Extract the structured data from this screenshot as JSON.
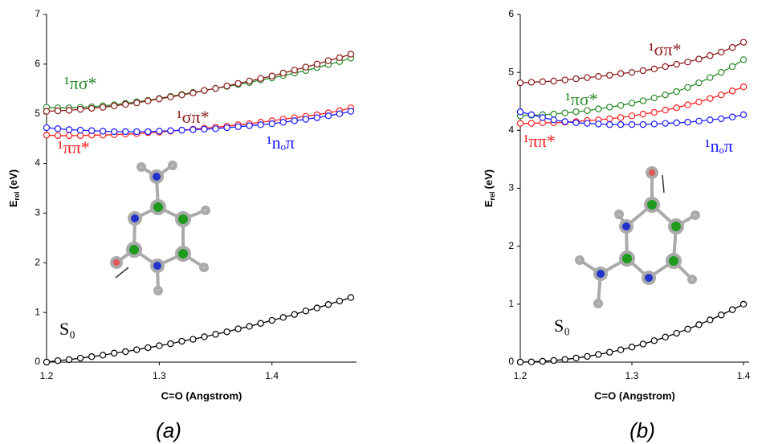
{
  "chart_data": [
    {
      "type": "line",
      "caption": "(a)",
      "x_label": "C=O (Angstrom)",
      "y_label": {
        "main": "E",
        "sub": "rel",
        "unit": "(eV)"
      },
      "xlim": [
        1.2,
        1.475
      ],
      "xticks": [
        1.2,
        1.3,
        1.4
      ],
      "ylim": [
        0,
        7
      ],
      "yticks": [
        0,
        1,
        2,
        3,
        4,
        5,
        6,
        7
      ],
      "x": [
        1.2,
        1.21,
        1.22,
        1.23,
        1.24,
        1.25,
        1.26,
        1.27,
        1.28,
        1.29,
        1.3,
        1.31,
        1.32,
        1.33,
        1.34,
        1.35,
        1.36,
        1.37,
        1.38,
        1.39,
        1.4,
        1.41,
        1.42,
        1.43,
        1.44,
        1.45,
        1.46,
        1.47
      ],
      "series": [
        {
          "name": "S₀",
          "color": "#000000",
          "values": [
            0,
            0.03,
            0.05,
            0.08,
            0.11,
            0.14,
            0.18,
            0.21,
            0.25,
            0.29,
            0.33,
            0.37,
            0.42,
            0.46,
            0.51,
            0.56,
            0.61,
            0.67,
            0.72,
            0.78,
            0.84,
            0.9,
            0.96,
            1.03,
            1.09,
            1.16,
            1.23,
            1.3
          ]
        },
        {
          "name": "¹πσ*",
          "color": "#2a8a2a",
          "values": [
            5.13,
            5.12,
            5.12,
            5.13,
            5.14,
            5.16,
            5.18,
            5.21,
            5.24,
            5.27,
            5.31,
            5.35,
            5.39,
            5.43,
            5.47,
            5.51,
            5.55,
            5.59,
            5.63,
            5.68,
            5.72,
            5.77,
            5.82,
            5.87,
            5.93,
            5.99,
            6.05,
            6.12
          ]
        },
        {
          "name": "¹σπ*",
          "color": "#8b1a1a",
          "values": [
            5.05,
            5.06,
            5.07,
            5.09,
            5.11,
            5.13,
            5.16,
            5.19,
            5.22,
            5.26,
            5.3,
            5.34,
            5.38,
            5.42,
            5.47,
            5.51,
            5.56,
            5.61,
            5.66,
            5.71,
            5.76,
            5.82,
            5.88,
            5.94,
            6.0,
            6.07,
            6.13,
            6.2
          ]
        },
        {
          "name": "¹ππ*",
          "color": "#ff2020",
          "values": [
            4.57,
            4.56,
            4.56,
            4.56,
            4.57,
            4.57,
            4.58,
            4.59,
            4.6,
            4.62,
            4.63,
            4.65,
            4.67,
            4.69,
            4.71,
            4.73,
            4.75,
            4.78,
            4.8,
            4.83,
            4.86,
            4.89,
            4.92,
            4.95,
            4.98,
            5.02,
            5.06,
            5.12
          ]
        },
        {
          "name": "¹nₒπ",
          "color": "#1a1aff",
          "values": [
            4.72,
            4.7,
            4.68,
            4.67,
            4.66,
            4.65,
            4.64,
            4.64,
            4.64,
            4.64,
            4.65,
            4.66,
            4.67,
            4.68,
            4.69,
            4.7,
            4.72,
            4.74,
            4.76,
            4.78,
            4.8,
            4.83,
            4.86,
            4.89,
            4.92,
            4.96,
            5.0,
            5.05
          ]
        }
      ]
    },
    {
      "type": "line",
      "caption": "(b)",
      "x_label": "C=O (Angstrom)",
      "y_label": {
        "main": "E",
        "sub": "rel",
        "unit": "(eV)"
      },
      "xlim": [
        1.2,
        1.405
      ],
      "xticks": [
        1.2,
        1.3,
        1.4
      ],
      "ylim": [
        0,
        6
      ],
      "yticks": [
        0,
        1,
        2,
        3,
        4,
        5,
        6
      ],
      "x": [
        1.2,
        1.21,
        1.22,
        1.23,
        1.24,
        1.25,
        1.26,
        1.27,
        1.28,
        1.29,
        1.3,
        1.31,
        1.32,
        1.33,
        1.34,
        1.35,
        1.36,
        1.37,
        1.38,
        1.39,
        1.4
      ],
      "series": [
        {
          "name": "S₀",
          "color": "#000000",
          "values": [
            0,
            0.004,
            0.014,
            0.028,
            0.046,
            0.07,
            0.098,
            0.132,
            0.17,
            0.212,
            0.26,
            0.312,
            0.37,
            0.432,
            0.498,
            0.57,
            0.646,
            0.728,
            0.814,
            0.904,
            1.0
          ]
        },
        {
          "name": "¹σπ*",
          "color": "#8b1a1a",
          "values": [
            4.82,
            4.83,
            4.84,
            4.85,
            4.87,
            4.89,
            4.91,
            4.93,
            4.95,
            4.98,
            5.0,
            5.03,
            5.06,
            5.1,
            5.14,
            5.18,
            5.23,
            5.29,
            5.35,
            5.43,
            5.52
          ]
        },
        {
          "name": "¹πσ*",
          "color": "#2a8a2a",
          "values": [
            4.25,
            4.26,
            4.27,
            4.28,
            4.3,
            4.32,
            4.34,
            4.37,
            4.4,
            4.43,
            4.47,
            4.51,
            4.56,
            4.61,
            4.67,
            4.74,
            4.82,
            4.91,
            5.0,
            5.1,
            5.22
          ]
        },
        {
          "name": "¹ππ*",
          "color": "#ff2020",
          "values": [
            4.12,
            4.12,
            4.13,
            4.13,
            4.14,
            4.15,
            4.17,
            4.18,
            4.2,
            4.22,
            4.25,
            4.28,
            4.31,
            4.35,
            4.39,
            4.44,
            4.49,
            4.55,
            4.61,
            4.68,
            4.75
          ]
        },
        {
          "name": "¹nₒπ",
          "color": "#1a1aff",
          "values": [
            4.32,
            4.27,
            4.22,
            4.18,
            4.15,
            4.13,
            4.12,
            4.11,
            4.1,
            4.1,
            4.1,
            4.1,
            4.11,
            4.12,
            4.13,
            4.14,
            4.16,
            4.18,
            4.2,
            4.23,
            4.27
          ]
        }
      ]
    }
  ]
}
